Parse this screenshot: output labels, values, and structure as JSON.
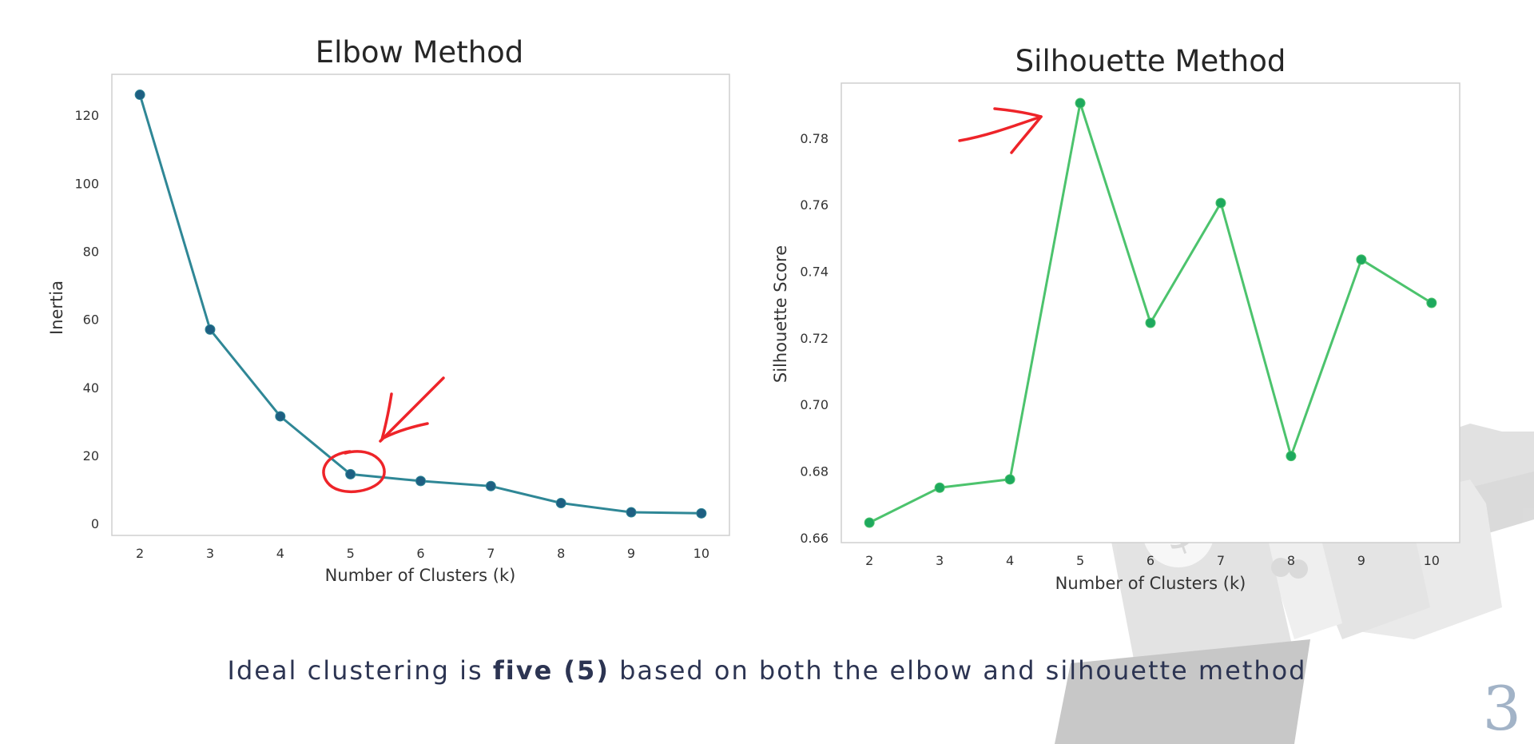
{
  "colors": {
    "elbow_line": "#2f8796",
    "elbow_marker": "#1e5f82",
    "silhouette_line": "#4cc36d",
    "silhouette_marker": "#1ea95e",
    "annotation": "#ee2429",
    "caption": "#2c3452",
    "page_number": "#a2b3c7"
  },
  "chart_data": [
    {
      "type": "line",
      "title": "Elbow Method",
      "xlabel": "Number of Clusters (k)",
      "ylabel": "Inertia",
      "x": [
        2,
        3,
        4,
        5,
        6,
        7,
        8,
        9,
        10
      ],
      "series": [
        {
          "values": [
            126,
            57,
            31.5,
            14.5,
            12.5,
            11,
            6,
            3.3,
            3
          ]
        }
      ],
      "xlim": [
        1.6,
        10.4
      ],
      "ylim": [
        -3.5,
        132
      ],
      "yticks": [
        0,
        20,
        40,
        60,
        80,
        100,
        120
      ],
      "grid": false,
      "annotation": "red hand-drawn arrow and circle around k=5"
    },
    {
      "type": "line",
      "title": "Silhouette Method",
      "xlabel": "Number of Clusters (k)",
      "ylabel": "Silhouette Score",
      "x": [
        2,
        3,
        4,
        5,
        6,
        7,
        8,
        9,
        10
      ],
      "series": [
        {
          "values": [
            0.6645,
            0.675,
            0.6775,
            0.7905,
            0.7245,
            0.7605,
            0.6845,
            0.7435,
            0.7305
          ]
        }
      ],
      "xlim": [
        1.6,
        10.4
      ],
      "ylim": [
        0.6585,
        0.7965
      ],
      "yticks": [
        0.66,
        0.68,
        0.7,
        0.72,
        0.74,
        0.76,
        0.78
      ],
      "ytick_labels": [
        "0.66",
        "0.68",
        "0.70",
        "0.72",
        "0.74",
        "0.76",
        "0.78"
      ],
      "grid": false,
      "annotation": "red hand-drawn arrow pointing at k=5"
    }
  ],
  "caption": {
    "before": "Ideal clustering is ",
    "bold": "five (5)",
    "after": " based on both the elbow and silhouette method"
  },
  "page_number": "3"
}
